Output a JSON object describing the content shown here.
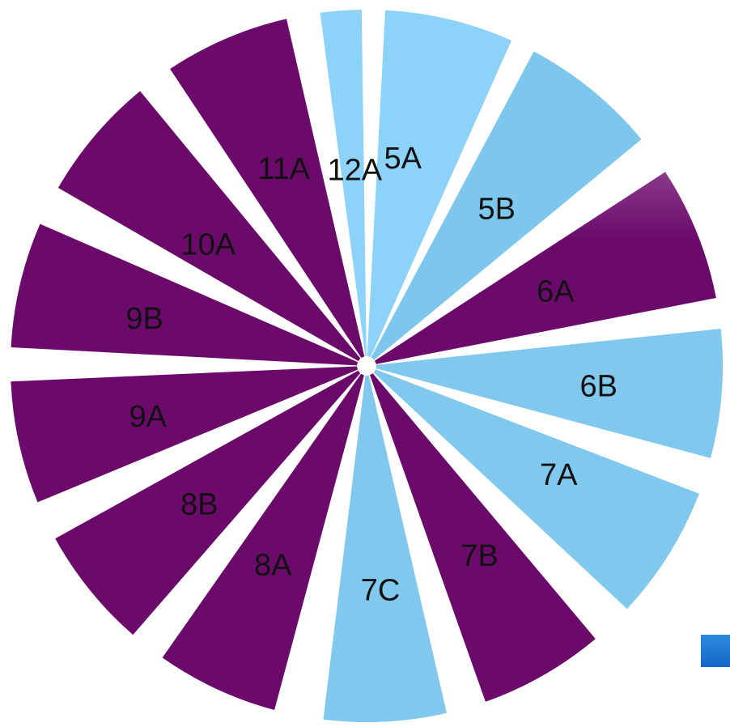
{
  "colors": {
    "purple": "#6b0a6b",
    "blue_light": "#8dd3f9",
    "blue_mid": "#7dc7ee",
    "blue_corner": "#1c74d3"
  },
  "segments": [
    {
      "label": "12A",
      "color": "#8dd3f9"
    },
    {
      "label": "5A",
      "color": "#8dd3f9"
    },
    {
      "label": "5B",
      "color": "#7dc7ee"
    },
    {
      "label": "6A",
      "color": "#6b0a6b"
    },
    {
      "label": "6B",
      "color": "#80c8ee"
    },
    {
      "label": "7A",
      "color": "#80c8ee"
    },
    {
      "label": "7B",
      "color": "#6b0a6b"
    },
    {
      "label": "7C",
      "color": "#80c8ee"
    },
    {
      "label": "8A",
      "color": "#6b0a6b"
    },
    {
      "label": "8B",
      "color": "#6b0a6b"
    },
    {
      "label": "9A",
      "color": "#6b0a6b"
    },
    {
      "label": "9B",
      "color": "#6b0a6b"
    },
    {
      "label": "10A",
      "color": "#6b0a6b"
    },
    {
      "label": "11A",
      "color": "#6b0a6b"
    }
  ]
}
